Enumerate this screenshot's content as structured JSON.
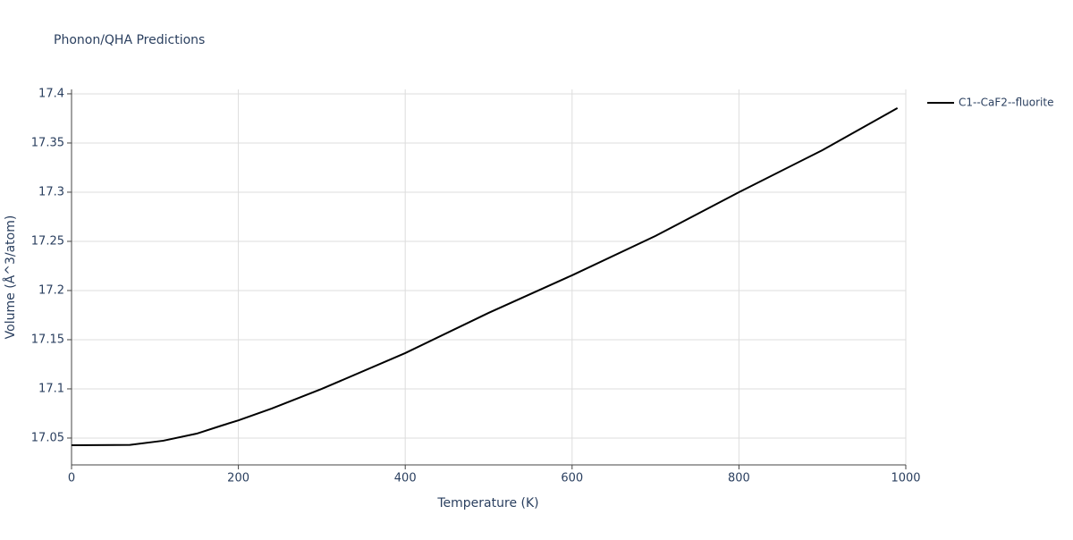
{
  "chart_data": {
    "type": "line",
    "title": "Phonon/QHA Predictions",
    "x_label": "Temperature (K)",
    "y_label": "Volume (Å^3/atom)",
    "x": [
      0,
      70,
      110,
      150,
      180,
      200,
      240,
      300,
      400,
      500,
      600,
      700,
      800,
      900,
      990
    ],
    "series": [
      {
        "name": "C1--CaF2--fluorite",
        "color": "#000000",
        "values": [
          17.0427,
          17.043,
          17.0473,
          17.0545,
          17.0627,
          17.068,
          17.08,
          17.1,
          17.1364,
          17.1773,
          17.2155,
          17.2555,
          17.3,
          17.3427,
          17.3855
        ]
      }
    ],
    "xlim": [
      0,
      1000
    ],
    "xticks": [
      0,
      200,
      400,
      600,
      800,
      1000
    ],
    "ylim": [
      17.0227,
      17.4045
    ],
    "yticks": [
      17.05,
      17.1,
      17.15,
      17.2,
      17.25,
      17.3,
      17.35,
      17.4
    ],
    "grid": true,
    "legend": "right"
  }
}
